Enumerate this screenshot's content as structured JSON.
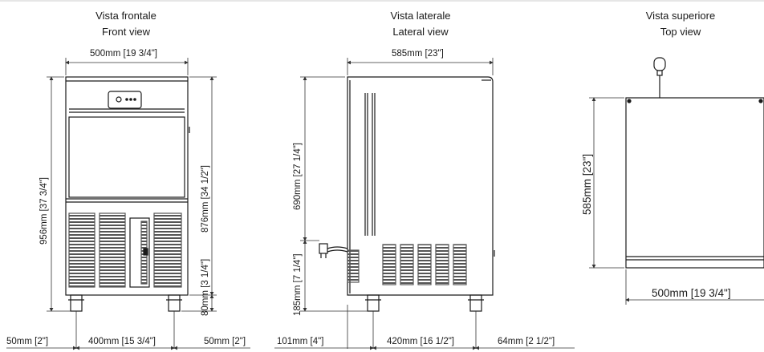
{
  "views": {
    "front": {
      "title_it": "Vista frontale",
      "title_en": "Front view"
    },
    "lateral": {
      "title_it": "Vista laterale",
      "title_en": "Lateral view"
    },
    "top": {
      "title_it": "Vista superiore",
      "title_en": "Top view"
    }
  },
  "dimensions": {
    "front_width": "500mm [19 3/4\"]",
    "front_height_total": "956mm [37 3/4\"]",
    "front_height_body": "876mm [34 1/2\"]",
    "front_feet": "80mm [3 1/4\"]",
    "front_left_offset": "50mm [2\"]",
    "front_feet_span": "400mm [15 3/4\"]",
    "front_right_offset": "50mm [2\"]",
    "lateral_depth": "585mm [23\"]",
    "lateral_upper": "690mm [27 1/4\"]",
    "lateral_lower": "185mm [7 1/4\"]",
    "lateral_left_offset": "101mm [4\"]",
    "lateral_feet_span": "420mm [16 1/2\"]",
    "lateral_right_offset": "64mm [2 1/2\"]",
    "top_depth": "585mm [23\"]",
    "top_width": "500mm [19 3/4\"]"
  },
  "colors": {
    "line": "#1a1a1a",
    "dim": "#333333",
    "grille": "#555555",
    "border": "#cccccc"
  }
}
